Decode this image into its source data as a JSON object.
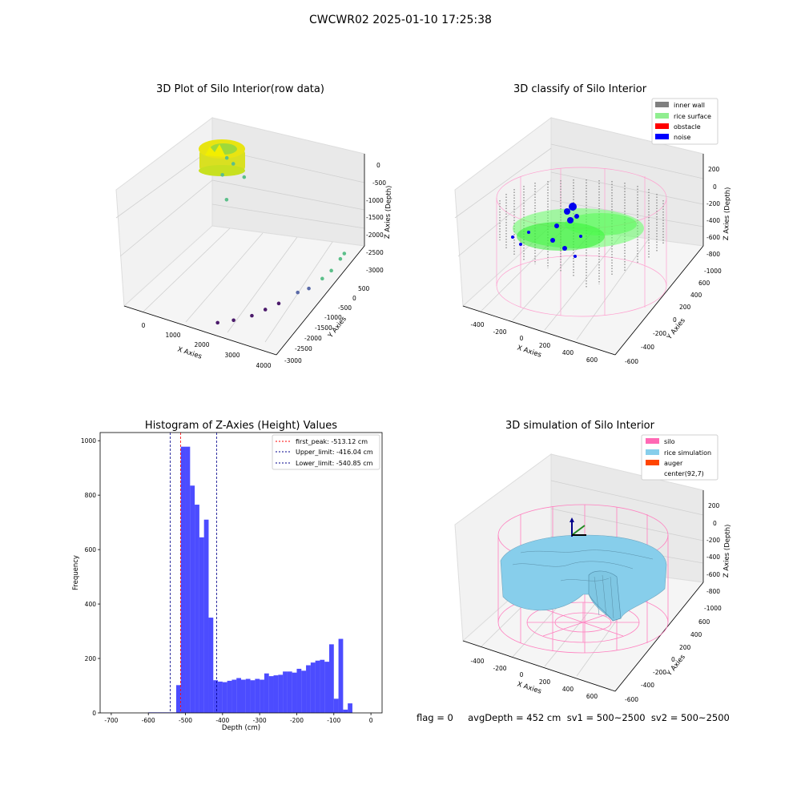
{
  "suptitle": "CWCWR02 2025-01-10 17:25:38",
  "status_text": "flag = 0     avgDepth = 452 cm  sv1 = 500~2500  sv2 = 500~2500",
  "chart_data": [
    {
      "type": "scatter",
      "title": "3D Plot of Silo Interior(row data)",
      "xlabel": "X Axies",
      "ylabel": "Y Axies",
      "zlabel": "Z Axies (Depth)",
      "x_ticks": [
        "0",
        "1000",
        "2000",
        "3000",
        "4000"
      ],
      "y_ticks": [
        "500",
        "0",
        "-500",
        "-1000",
        "-1500",
        "-2000",
        "-2500",
        "-3000"
      ],
      "z_ticks": [
        "0",
        "-500",
        "-1000",
        "-1500",
        "-2000",
        "-2500",
        "-3000"
      ],
      "xlim": [
        -500,
        4200
      ],
      "ylim": [
        -3100,
        700
      ],
      "zlim": [
        -3100,
        100
      ],
      "points": [
        {
          "x": 2100,
          "y": -2700,
          "z": -3050
        },
        {
          "x": 2450,
          "y": -2500,
          "z": -3000
        },
        {
          "x": 2800,
          "y": -2200,
          "z": -2950
        },
        {
          "x": 3000,
          "y": -1900,
          "z": -2900
        },
        {
          "x": 3200,
          "y": -1600,
          "z": -2850
        },
        {
          "x": 3500,
          "y": -1200,
          "z": -2700
        },
        {
          "x": 3700,
          "y": -1000,
          "z": -2650
        },
        {
          "x": 3900,
          "y": -700,
          "z": -2500
        },
        {
          "x": 4000,
          "y": -450,
          "z": -2400
        },
        {
          "x": 4100,
          "y": -200,
          "z": -2200
        },
        {
          "x": 4150,
          "y": -100,
          "z": -2100
        },
        {
          "x": 200,
          "y": 350,
          "z": -900
        },
        {
          "x": 400,
          "y": 350,
          "z": -1000
        },
        {
          "x": 700,
          "y": 400,
          "z": -1300
        },
        {
          "x": 300,
          "y": 200,
          "z": -1900
        },
        {
          "x": 100,
          "y": 300,
          "z": -1350
        }
      ]
    },
    {
      "type": "scatter",
      "title": "3D classify of Silo Interior",
      "xlabel": "X Axies",
      "ylabel": "Y Axies",
      "zlabel": "Z Axies (Depth)",
      "x_ticks": [
        "-400",
        "-200",
        "0",
        "200",
        "400",
        "600"
      ],
      "y_ticks": [
        "600",
        "400",
        "200",
        "0",
        "-200",
        "-400",
        "-600"
      ],
      "z_ticks": [
        "200",
        "0",
        "-200",
        "-400",
        "-600",
        "-800",
        "-1000"
      ],
      "legend": [
        {
          "label": "inner wall",
          "color": "#808080"
        },
        {
          "label": "rice surface",
          "color": "#90ee90"
        },
        {
          "label": "obstacle",
          "color": "#ff0000"
        },
        {
          "label": "noise",
          "color": "#0000ff"
        }
      ],
      "legend_position": "top-right"
    },
    {
      "type": "bar",
      "title": "Histogram of Z-Axies (Height) Values",
      "xlabel": "Depth (cm)",
      "ylabel": "Frequency",
      "xlim": [
        -730,
        30
      ],
      "ylim": [
        0,
        1030
      ],
      "x_ticks": [
        -700,
        -600,
        -500,
        -400,
        -300,
        -200,
        -100,
        0
      ],
      "y_ticks": [
        0,
        200,
        400,
        600,
        800,
        1000
      ],
      "bin_width": 12.5,
      "bin_start": -600,
      "values": [
        2,
        2,
        2,
        2,
        2,
        2,
        102,
        978,
        978,
        835,
        765,
        645,
        710,
        350,
        120,
        115,
        113,
        118,
        122,
        128,
        122,
        125,
        120,
        125,
        122,
        145,
        135,
        138,
        140,
        152,
        152,
        148,
        162,
        155,
        175,
        185,
        192,
        195,
        188,
        252,
        52,
        272,
        12,
        35
      ],
      "color": "#0000ff",
      "lines": [
        {
          "label": "first_peak: -513.12 cm",
          "x": -513.12,
          "color": "#ff0000"
        },
        {
          "label": "Upper_limit: -416.04 cm",
          "x": -416.04,
          "color": "#00008b"
        },
        {
          "label": "Lower_limit: -540.85 cm",
          "x": -540.85,
          "color": "#00008b"
        }
      ],
      "legend_position": "top-right"
    },
    {
      "type": "area",
      "title": "3D simulation of Silo Interior",
      "xlabel": "X Axies",
      "ylabel": "Y Axies",
      "zlabel": "Z Axies (Depth)",
      "x_ticks": [
        "-400",
        "-200",
        "0",
        "200",
        "400",
        "600"
      ],
      "y_ticks": [
        "600",
        "400",
        "200",
        "0",
        "-200",
        "-400",
        "-600"
      ],
      "z_ticks": [
        "200",
        "0",
        "-200",
        "-400",
        "-600",
        "-800",
        "-1000"
      ],
      "legend": [
        {
          "label": "silo",
          "color": "#ff69b4"
        },
        {
          "label": "rice simulation",
          "color": "#87ceeb"
        },
        {
          "label": "auger",
          "color": "#ff4500"
        },
        {
          "label": "center(92,7)",
          "color": ""
        }
      ],
      "legend_position": "top-right"
    }
  ]
}
